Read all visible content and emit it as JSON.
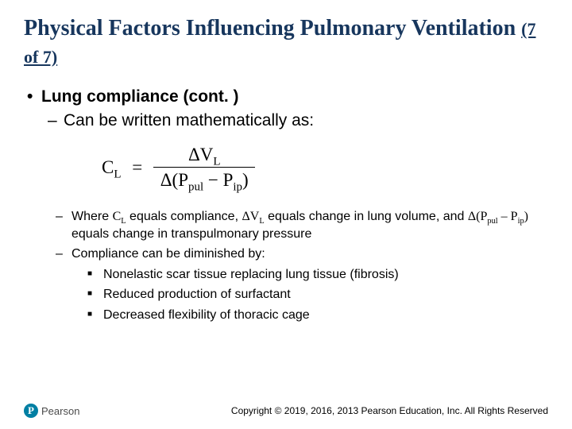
{
  "title": {
    "main": "Physical Factors Influencing Pulmonary Ventilation",
    "part": "(7 of 7)"
  },
  "content": {
    "l1": "Lung compliance (cont. )",
    "l2a": "Can be written mathematically as:",
    "equation": {
      "left_main": "C",
      "left_sub": "L",
      "num_delta": "ΔV",
      "num_sub": "L",
      "den_open": "Δ(P",
      "den_sub1": "pul",
      "den_mid": " − P",
      "den_sub2": "ip",
      "den_close": ")"
    },
    "l3a_pre": "Where ",
    "l3a_cl": "C",
    "l3a_cl_sub": "L",
    "l3a_mid1": " equals compliance, ",
    "l3a_dv": "ΔV",
    "l3a_dv_sub": "L",
    "l3a_mid2": " equals change in lung volume, and ",
    "l3a_dp": "Δ(P",
    "l3a_dp_sub1": "pul",
    "l3a_dp_mid": " – P",
    "l3a_dp_sub2": "ip",
    "l3a_dp_close": ")",
    "l3a_post": " equals change in transpulmonary pressure",
    "l3b": "Compliance can be diminished by:",
    "l4a": "Nonelastic scar tissue replacing lung tissue (fibrosis)",
    "l4b": "Reduced production of surfactant",
    "l4c": "Decreased flexibility of thoracic cage"
  },
  "footer": {
    "logo_letter": "P",
    "logo_text": "Pearson",
    "copyright": "Copyright © 2019, 2016, 2013 Pearson Education, Inc. All Rights Reserved"
  }
}
